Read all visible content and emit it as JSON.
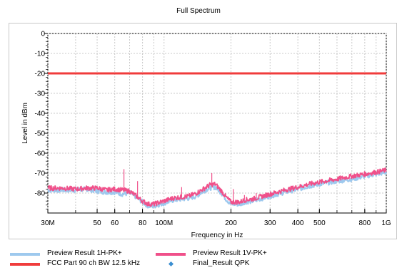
{
  "chart_data": {
    "type": "line",
    "title": "Full Spectrum",
    "xlabel": "Frequency in Hz",
    "ylabel": "Level in dBm",
    "x_scale": "log",
    "xlim": [
      30000000,
      1000000000
    ],
    "ylim": [
      -90,
      0
    ],
    "grid": true,
    "x_ticks": [
      {
        "value": 30000000,
        "label": "30M"
      },
      {
        "value": 50000000,
        "label": "50"
      },
      {
        "value": 60000000,
        "label": "60"
      },
      {
        "value": 80000000,
        "label": "80"
      },
      {
        "value": 100000000,
        "label": "100M"
      },
      {
        "value": 200000000,
        "label": "200"
      },
      {
        "value": 300000000,
        "label": "300"
      },
      {
        "value": 400000000,
        "label": "400"
      },
      {
        "value": 500000000,
        "label": "500"
      },
      {
        "value": 800000000,
        "label": "800"
      },
      {
        "value": 1000000000,
        "label": "1G"
      }
    ],
    "y_ticks": [
      {
        "value": 0,
        "label": "0"
      },
      {
        "value": -10,
        "label": "-10"
      },
      {
        "value": -20,
        "label": "-20"
      },
      {
        "value": -30,
        "label": "-30"
      },
      {
        "value": -40,
        "label": "-40"
      },
      {
        "value": -50,
        "label": "-50"
      },
      {
        "value": -60,
        "label": "-60"
      },
      {
        "value": -70,
        "label": "-70"
      },
      {
        "value": -80,
        "label": "-80"
      }
    ],
    "series": [
      {
        "name": "Preview Result 1H-PK+",
        "color": "#9ec9ee",
        "x": [
          30000000,
          35000000,
          40000000,
          45000000,
          50000000,
          55000000,
          60000000,
          65000000,
          70000000,
          75000000,
          80000000,
          85000000,
          90000000,
          100000000,
          110000000,
          120000000,
          130000000,
          140000000,
          150000000,
          160000000,
          170000000,
          180000000,
          190000000,
          200000000,
          210000000,
          220000000,
          230000000,
          250000000,
          300000000,
          350000000,
          400000000,
          450000000,
          500000000,
          600000000,
          700000000,
          800000000,
          900000000,
          1000000000
        ],
        "values": [
          -78.5,
          -78.5,
          -78.5,
          -78,
          -79,
          -79.5,
          -79.5,
          -80.5,
          -80,
          -82,
          -84.5,
          -86.5,
          -86.5,
          -85,
          -83.5,
          -83,
          -82.5,
          -81.5,
          -79,
          -77.5,
          -77,
          -79.5,
          -83,
          -85.5,
          -85.5,
          -85.5,
          -84.5,
          -84,
          -81.5,
          -79.5,
          -78,
          -76.5,
          -75.5,
          -74,
          -73,
          -71.5,
          -70.5,
          -69.5
        ]
      },
      {
        "name": "Preview Result 1V-PK+",
        "color": "#f0508a",
        "x": [
          30000000,
          35000000,
          40000000,
          45000000,
          50000000,
          55000000,
          60000000,
          65000000,
          70000000,
          75000000,
          80000000,
          85000000,
          90000000,
          100000000,
          110000000,
          120000000,
          130000000,
          140000000,
          150000000,
          160000000,
          170000000,
          180000000,
          190000000,
          200000000,
          210000000,
          220000000,
          230000000,
          250000000,
          300000000,
          350000000,
          400000000,
          450000000,
          500000000,
          600000000,
          700000000,
          800000000,
          900000000,
          1000000000
        ],
        "values": [
          -77.5,
          -77.5,
          -78,
          -77.5,
          -77.5,
          -78.5,
          -78,
          -78.5,
          -79,
          -81.5,
          -84,
          -85.5,
          -85.5,
          -84,
          -82.5,
          -82,
          -81.5,
          -80,
          -78,
          -76,
          -75.5,
          -78.5,
          -82,
          -84.5,
          -84.5,
          -84.5,
          -83.5,
          -83,
          -80.5,
          -78.5,
          -77,
          -75.5,
          -74.5,
          -73,
          -71.5,
          -70.5,
          -69.5,
          -68.5
        ]
      },
      {
        "name": "FCC Part 90 ch BW 12.5 kHz",
        "color": "#f03c3c",
        "x": [
          30000000,
          1000000000
        ],
        "values": [
          -20,
          -20
        ]
      },
      {
        "name": "Final_Result QPK",
        "color": "#3b8fd1",
        "x": [],
        "values": []
      }
    ],
    "spikes": [
      {
        "x": 66000000,
        "value": -68
      },
      {
        "x": 76000000,
        "value": -74
      },
      {
        "x": 120000000,
        "value": -77
      },
      {
        "x": 164000000,
        "value": -70
      },
      {
        "x": 205000000,
        "value": -78
      },
      {
        "x": 230000000,
        "value": -81
      },
      {
        "x": 260000000,
        "value": -80
      }
    ],
    "legend_position": "bottom"
  }
}
